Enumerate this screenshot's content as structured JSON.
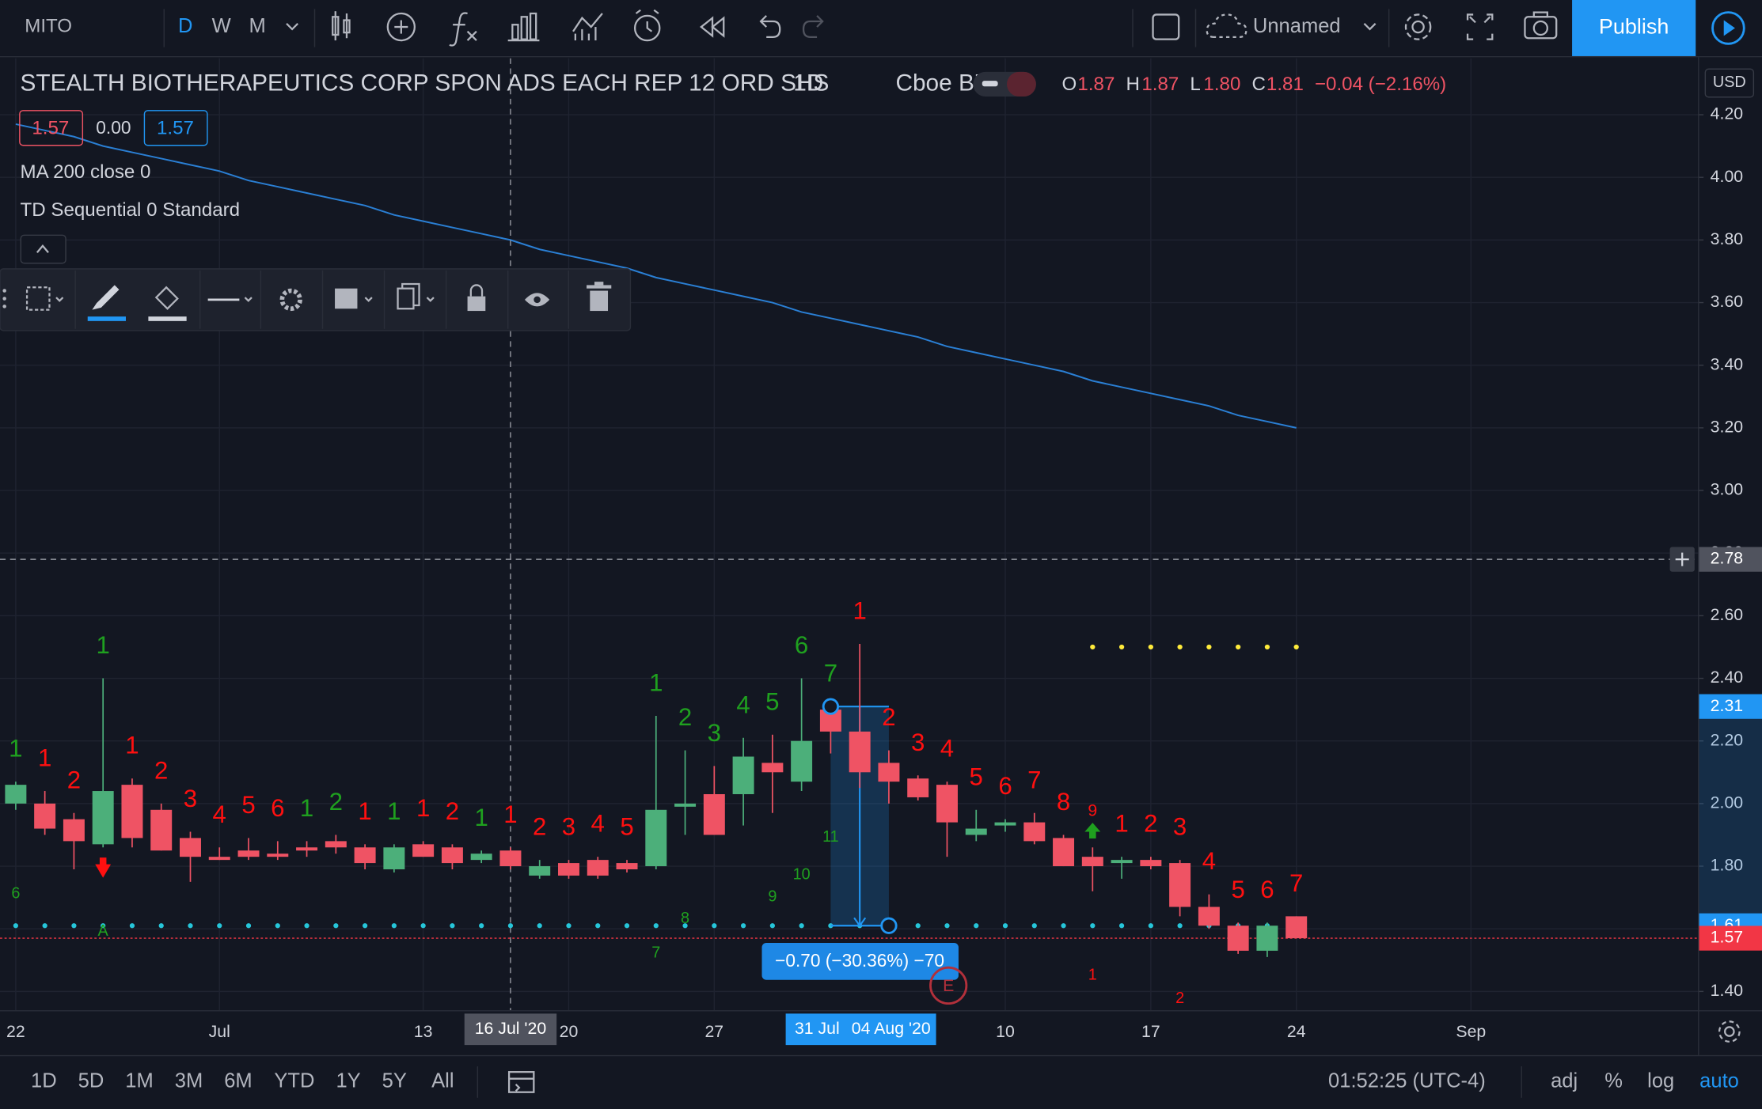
{
  "toolbar": {
    "symbol": "MITO",
    "intervals": [
      "D",
      "W",
      "M"
    ],
    "layout_name": "Unnamed",
    "publish": "Publish"
  },
  "legend": {
    "title": "STEALTH BIOTHERAPEUTICS CORP SPON ADS EACH REP 12 ORD SHS",
    "interval": "1D",
    "exchange": "Cboe BZX",
    "ohlc": [
      {
        "label": "O",
        "value": "1.87"
      },
      {
        "label": "H",
        "value": "1.87"
      },
      {
        "label": "L",
        "value": "1.80"
      },
      {
        "label": "C",
        "value": "1.81"
      }
    ],
    "change": "−0.04 (−2.16%)",
    "inputs": [
      "1.57",
      "0.00",
      "1.57"
    ],
    "indicators": [
      "MA 200 close 0",
      "TD Sequential 0 Standard"
    ]
  },
  "currency": "USD",
  "earnings_label": "E",
  "measure_label": "−0.70 (−30.36%) −70",
  "chart_data": {
    "type": "candlestick",
    "categories": [
      "22",
      null,
      null,
      null,
      null,
      null,
      null,
      "Jul",
      null,
      null,
      null,
      null,
      null,
      null,
      "13",
      null,
      null,
      null,
      null,
      "20",
      null,
      null,
      null,
      null,
      "27",
      null,
      null,
      null,
      null,
      null,
      null,
      null,
      null,
      null,
      "10",
      null,
      null,
      null,
      null,
      "17",
      null,
      null,
      null,
      null,
      "24",
      null,
      null,
      null,
      null,
      null,
      "Sep"
    ],
    "x_markers": [
      null,
      null,
      null,
      null,
      null,
      null,
      null,
      null,
      null,
      null,
      null,
      null,
      null,
      null,
      null,
      null,
      null,
      "16 Jul '20",
      null,
      null,
      null,
      null,
      null,
      null,
      null,
      null,
      null,
      null,
      "31 Jul",
      null,
      "04 Aug '20",
      null,
      null,
      null,
      null,
      null,
      null,
      null,
      null,
      null,
      null,
      null,
      null,
      null,
      null,
      null,
      null,
      null,
      null,
      null,
      null
    ],
    "open": [
      2.0,
      2.0,
      1.95,
      1.87,
      2.06,
      1.98,
      1.89,
      1.83,
      1.85,
      1.84,
      1.86,
      1.88,
      1.86,
      1.79,
      1.87,
      1.86,
      1.82,
      1.85,
      1.77,
      1.81,
      1.82,
      1.81,
      1.8,
      1.99,
      2.03,
      2.03,
      2.13,
      2.07,
      2.3,
      2.23,
      2.13,
      2.08,
      2.06,
      1.9,
      1.93,
      1.94,
      1.89,
      1.83,
      1.81,
      1.82,
      1.81,
      1.67,
      1.61,
      1.53,
      1.64,
      null,
      null,
      null,
      null,
      null,
      null
    ],
    "high": [
      2.07,
      2.04,
      1.97,
      2.4,
      2.08,
      2.0,
      1.91,
      1.86,
      1.89,
      1.88,
      1.88,
      1.9,
      1.87,
      1.87,
      1.88,
      1.87,
      1.85,
      1.86,
      1.82,
      1.82,
      1.83,
      1.82,
      2.28,
      2.17,
      2.12,
      2.21,
      2.22,
      2.4,
      2.31,
      2.51,
      2.17,
      2.09,
      2.07,
      1.98,
      1.95,
      1.97,
      1.9,
      1.86,
      1.83,
      1.83,
      1.82,
      1.71,
      1.62,
      1.62,
      1.64,
      null,
      null,
      null,
      null,
      null,
      null
    ],
    "low": [
      1.98,
      1.9,
      1.79,
      1.86,
      1.86,
      1.85,
      1.75,
      1.82,
      1.82,
      1.82,
      1.83,
      1.84,
      1.79,
      1.78,
      1.83,
      1.79,
      1.81,
      1.79,
      1.76,
      1.76,
      1.76,
      1.78,
      1.79,
      1.9,
      1.9,
      1.93,
      1.97,
      2.04,
      2.16,
      2.05,
      2.0,
      2.01,
      1.83,
      1.88,
      1.91,
      1.87,
      1.8,
      1.72,
      1.76,
      1.79,
      1.64,
      1.6,
      1.52,
      1.51,
      1.57,
      null,
      null,
      null,
      null,
      null,
      null
    ],
    "close": [
      2.06,
      1.92,
      1.88,
      2.04,
      1.89,
      1.85,
      1.83,
      1.82,
      1.83,
      1.83,
      1.85,
      1.86,
      1.81,
      1.86,
      1.83,
      1.81,
      1.84,
      1.8,
      1.8,
      1.77,
      1.77,
      1.79,
      1.98,
      2.0,
      1.9,
      2.15,
      2.1,
      2.2,
      2.23,
      2.1,
      2.07,
      2.02,
      1.94,
      1.92,
      1.94,
      1.88,
      1.8,
      1.8,
      1.82,
      1.8,
      1.67,
      1.61,
      1.53,
      1.61,
      1.57,
      null,
      null,
      null,
      null,
      null,
      null
    ],
    "up_color": "#4caf7a",
    "down_color": "#ef5364",
    "ma": {
      "color": "#2a7fd4",
      "values": [
        4.17,
        4.15,
        4.13,
        4.1,
        4.08,
        4.06,
        4.04,
        4.02,
        3.99,
        3.97,
        3.95,
        3.93,
        3.91,
        3.88,
        3.86,
        3.84,
        3.82,
        3.8,
        3.77,
        3.75,
        3.73,
        3.71,
        3.68,
        3.66,
        3.64,
        3.62,
        3.6,
        3.57,
        3.55,
        3.53,
        3.51,
        3.49,
        3.46,
        3.44,
        3.42,
        3.4,
        3.38,
        3.35,
        3.33,
        3.31,
        3.29,
        3.27,
        3.24,
        3.22,
        3.2,
        null,
        null,
        null,
        null,
        null,
        null
      ]
    },
    "td_top": [
      {
        "text": "1",
        "color": "#1fa01f"
      },
      {
        "text": "1",
        "color": "#ff1010"
      },
      {
        "text": "2",
        "color": "#ff1010"
      },
      {
        "text": "1",
        "color": "#1fa01f"
      },
      {
        "text": "1",
        "color": "#ff1010"
      },
      {
        "text": "2",
        "color": "#ff1010"
      },
      {
        "text": "3",
        "color": "#ff1010"
      },
      {
        "text": "4",
        "color": "#ff1010"
      },
      {
        "text": "5",
        "color": "#ff1010"
      },
      {
        "text": "6",
        "color": "#ff1010"
      },
      {
        "text": "1",
        "color": "#1fa01f"
      },
      {
        "text": "2",
        "color": "#1fa01f"
      },
      {
        "text": "1",
        "color": "#ff1010"
      },
      {
        "text": "1",
        "color": "#1fa01f"
      },
      {
        "text": "1",
        "color": "#ff1010"
      },
      {
        "text": "2",
        "color": "#ff1010"
      },
      {
        "text": "1",
        "color": "#1fa01f"
      },
      {
        "text": "1",
        "color": "#ff1010"
      },
      {
        "text": "2",
        "color": "#ff1010"
      },
      {
        "text": "3",
        "color": "#ff1010"
      },
      {
        "text": "4",
        "color": "#ff1010"
      },
      {
        "text": "5",
        "color": "#ff1010"
      },
      {
        "text": "1",
        "color": "#1fa01f"
      },
      {
        "text": "2",
        "color": "#1fa01f"
      },
      {
        "text": "3",
        "color": "#1fa01f"
      },
      {
        "text": "4",
        "color": "#1fa01f"
      },
      {
        "text": "5",
        "color": "#1fa01f"
      },
      {
        "text": "6",
        "color": "#1fa01f"
      },
      {
        "text": "7",
        "color": "#1fa01f"
      },
      {
        "text": "1",
        "color": "#ff1010"
      },
      {
        "text": "2",
        "color": "#ff1010"
      },
      {
        "text": "3",
        "color": "#ff1010"
      },
      {
        "text": "4",
        "color": "#ff1010"
      },
      {
        "text": "5",
        "color": "#ff1010"
      },
      {
        "text": "6",
        "color": "#ff1010"
      },
      {
        "text": "7",
        "color": "#ff1010"
      },
      {
        "text": "8",
        "color": "#ff1010"
      },
      {
        "text": "9",
        "color": "#ff1010"
      },
      {
        "text": "1",
        "color": "#ff1010"
      },
      {
        "text": "2",
        "color": "#ff1010"
      },
      {
        "text": "3",
        "color": "#ff1010"
      },
      {
        "text": "4",
        "color": "#ff1010"
      },
      {
        "text": "5",
        "color": "#ff1010"
      },
      {
        "text": "6",
        "color": "#ff1010"
      },
      {
        "text": "7",
        "color": "#ff1010"
      },
      null,
      null,
      null,
      null,
      null,
      null
    ],
    "td_bottom": [
      {
        "text": "6",
        "color": "#1fa01f"
      },
      null,
      null,
      {
        "text": "A",
        "color": "#1fa01f"
      },
      null,
      null,
      null,
      null,
      null,
      null,
      null,
      null,
      null,
      null,
      null,
      null,
      null,
      null,
      null,
      null,
      null,
      null,
      {
        "text": "7",
        "color": "#1fa01f"
      },
      {
        "text": "8",
        "color": "#1fa01f"
      },
      null,
      null,
      {
        "text": "9",
        "color": "#1fa01f"
      },
      {
        "text": "10",
        "color": "#1fa01f"
      },
      {
        "text": "11",
        "color": "#1fa01f"
      },
      null,
      null,
      null,
      null,
      null,
      null,
      null,
      null,
      {
        "text": "1",
        "color": "#ff1010"
      },
      null,
      null,
      {
        "text": "2",
        "color": "#ff1010"
      },
      null,
      null,
      null,
      null,
      null,
      null,
      null,
      null,
      null,
      null
    ],
    "resistance": 2.5,
    "resistance_color": "#ffeb3b",
    "support_color": "#26c6da",
    "ylim": [
      1.34,
      4.38
    ],
    "yticks": [
      {
        "value": 4.2,
        "label": "4.20"
      },
      {
        "value": 4.0,
        "label": "4.00"
      },
      {
        "value": 3.8,
        "label": "3.80"
      },
      {
        "value": 3.6,
        "label": "3.60"
      },
      {
        "value": 3.4,
        "label": "3.40"
      },
      {
        "value": 3.2,
        "label": "3.20"
      },
      {
        "value": 3.0,
        "label": "3.00"
      },
      {
        "value": 2.8,
        "label": "2.80"
      },
      {
        "value": 2.6,
        "label": "2.60"
      },
      {
        "value": 2.4,
        "label": "2.40"
      },
      {
        "value": 2.2,
        "label": "2.20"
      },
      {
        "value": 2.0,
        "label": "2.00"
      },
      {
        "value": 1.8,
        "label": "1.80"
      },
      {
        "value": 1.6,
        "label": "1.60"
      },
      {
        "value": 1.4,
        "label": "1.40"
      }
    ],
    "price_markers": [
      {
        "value": 2.78,
        "label": "2.78",
        "color": "#50535e"
      },
      {
        "value": 2.31,
        "label": "2.31",
        "color": "#2196f3"
      },
      {
        "value": 1.61,
        "label": "1.61",
        "color": "#2196f3"
      },
      {
        "value": 1.57,
        "label": "1.57",
        "color": "#f23645"
      }
    ],
    "grid": true
  },
  "bottom_bar": {
    "ranges": [
      "1D",
      "5D",
      "1M",
      "3M",
      "6M",
      "YTD",
      "1Y",
      "5Y",
      "All"
    ],
    "clock": "01:52:25 (UTC-4)",
    "options": [
      "adj",
      "%",
      "log",
      "auto"
    ]
  }
}
